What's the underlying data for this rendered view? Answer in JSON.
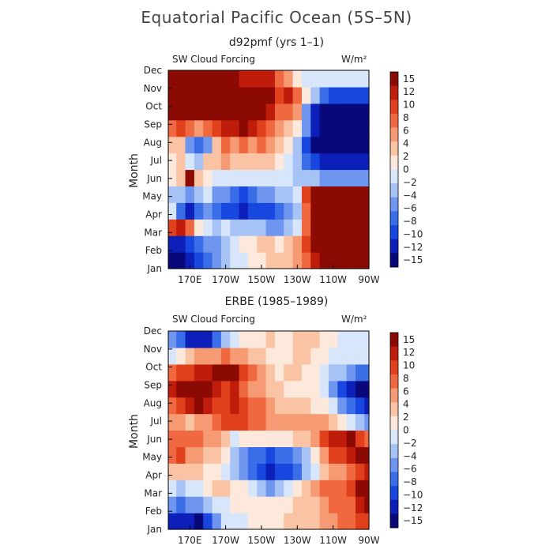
{
  "title": "Equatorial Pacific Ocean (5S–5N)",
  "colors": {
    "levels": [
      "#08087a",
      "#0c1fb8",
      "#1847e0",
      "#3a6ee8",
      "#6e96ef",
      "#a7c3f5",
      "#d8e6fb",
      "#fde9dc",
      "#f9c3a4",
      "#f59a72",
      "#f0683f",
      "#e0401c",
      "#c01c0b",
      "#8c0a04"
    ]
  },
  "chart_data": [
    {
      "type": "heatmap",
      "title": "d92pmf (yrs 1–1)",
      "variable": "SW Cloud Forcing",
      "units": "W/m²",
      "ylabel": "Month",
      "x_ticks": [
        "170E",
        "170W",
        "150W",
        "130W",
        "110W",
        "90W"
      ],
      "x_tick_values": [
        170,
        190,
        210,
        230,
        250,
        270
      ],
      "xlim": [
        158,
        270
      ],
      "y_ticks": [
        "Jan",
        "Feb",
        "Mar",
        "Apr",
        "May",
        "Jun",
        "Jul",
        "Aug",
        "Sep",
        "Oct",
        "Nov",
        "Dec"
      ],
      "colorbar_labels": [
        "15",
        "12",
        "10",
        "8",
        "6",
        "4",
        "2",
        "0",
        "−2",
        "−4",
        "−6",
        "−8",
        "−10",
        "−12",
        "−15"
      ],
      "x": [
        160,
        165,
        170,
        175,
        180,
        185,
        190,
        195,
        200,
        205,
        210,
        215,
        220,
        225,
        230,
        235,
        240,
        245,
        250,
        255,
        260,
        265,
        270
      ],
      "grid": [
        [
          -14,
          -14,
          -12,
          -10,
          -8,
          -6,
          -4,
          -2,
          -1,
          0,
          1,
          2,
          2,
          3,
          4,
          6,
          10,
          14,
          15,
          16,
          16,
          16,
          16
        ],
        [
          -13,
          -12,
          -10,
          -8,
          -6,
          -5,
          -3,
          -2,
          0,
          1,
          2,
          2,
          1,
          2,
          4,
          8,
          12,
          14,
          15,
          16,
          16,
          16,
          16
        ],
        [
          8,
          10,
          6,
          0,
          -2,
          -3,
          -2,
          -3,
          -4,
          -4,
          -4,
          -5,
          -5,
          -4,
          -2,
          6,
          12,
          15,
          16,
          16,
          16,
          16,
          16
        ],
        [
          -2,
          -8,
          -12,
          -8,
          -6,
          -8,
          -10,
          -10,
          -11,
          -9,
          -10,
          -9,
          -8,
          -6,
          -4,
          6,
          12,
          15,
          16,
          16,
          16,
          16,
          16
        ],
        [
          -4,
          -3,
          -6,
          -3,
          -2,
          -5,
          -6,
          -8,
          -9,
          -7,
          -6,
          -5,
          -4,
          -3,
          -1,
          8,
          12,
          12,
          12,
          12,
          12,
          12,
          12
        ],
        [
          0,
          2,
          16,
          3,
          1,
          -2,
          -1,
          -1,
          -2,
          -1,
          -1,
          -1,
          -2,
          -2,
          -3,
          -4,
          -4,
          -5,
          -5,
          -5,
          -5,
          -5,
          -5
        ],
        [
          1,
          3,
          -1,
          -4,
          2,
          2,
          4,
          3,
          2,
          2,
          3,
          2,
          0,
          -1,
          -4,
          -8,
          -10,
          -11,
          -12,
          -12,
          -12,
          -12,
          -12
        ],
        [
          2,
          2,
          -6,
          -8,
          -5,
          3,
          6,
          5,
          6,
          5,
          6,
          4,
          2,
          0,
          -4,
          -10,
          -14,
          -15,
          -16,
          -16,
          -16,
          -16,
          -16
        ],
        [
          6,
          8,
          6,
          4,
          6,
          8,
          10,
          11,
          12,
          10,
          8,
          6,
          4,
          2,
          0,
          -6,
          -12,
          -16,
          -16,
          -16,
          -16,
          -16,
          -16
        ],
        [
          12,
          13,
          14,
          14,
          13,
          14,
          15,
          15,
          16,
          14,
          12,
          10,
          6,
          6,
          4,
          -6,
          -12,
          -16,
          -16,
          -16,
          -16,
          -16,
          -16
        ],
        [
          15,
          16,
          16,
          16,
          16,
          16,
          16,
          16,
          16,
          16,
          14,
          12,
          8,
          10,
          6,
          0,
          -4,
          -8,
          -10,
          -10,
          -10,
          -10,
          -10
        ],
        [
          12,
          12,
          12,
          12,
          12,
          12,
          12,
          12,
          10,
          10,
          10,
          10,
          6,
          4,
          0,
          -2,
          -2,
          -2,
          -2,
          -2,
          -2,
          -2,
          -2
        ]
      ]
    },
    {
      "type": "heatmap",
      "title": "ERBE (1985–1989)",
      "variable": "SW Cloud Forcing",
      "units": "W/m²",
      "ylabel": "Month",
      "x_ticks": [
        "170E",
        "170W",
        "150W",
        "130W",
        "110W",
        "90W"
      ],
      "x_tick_values": [
        170,
        190,
        210,
        230,
        250,
        270
      ],
      "xlim": [
        158,
        270
      ],
      "y_ticks": [
        "Jan",
        "Feb",
        "Mar",
        "Apr",
        "May",
        "Jun",
        "Jul",
        "Aug",
        "Sep",
        "Oct",
        "Nov",
        "Dec"
      ],
      "colorbar_labels": [
        "15",
        "12",
        "10",
        "8",
        "6",
        "4",
        "2",
        "0",
        "−2",
        "−4",
        "−6",
        "−8",
        "−10",
        "−12",
        "−15"
      ],
      "x": [
        160,
        165,
        170,
        175,
        180,
        185,
        190,
        195,
        200,
        205,
        210,
        215,
        220,
        225,
        230,
        235,
        240,
        245,
        250,
        255,
        260,
        265,
        270
      ],
      "grid": [
        [
          -12,
          -13,
          -12,
          -14,
          -10,
          -6,
          -2,
          -1,
          -1,
          0,
          0,
          1,
          1,
          2,
          2,
          3,
          3,
          4,
          5,
          6,
          6,
          8,
          8
        ],
        [
          -6,
          -8,
          -6,
          -5,
          -4,
          -2,
          -1,
          0,
          0,
          1,
          1,
          1,
          1,
          1,
          2,
          2,
          3,
          4,
          6,
          6,
          6,
          10,
          12
        ],
        [
          -2,
          -3,
          -2,
          -1,
          0,
          2,
          2,
          1,
          0,
          -2,
          -4,
          -5,
          -4,
          -2,
          0,
          2,
          4,
          6,
          6,
          6,
          8,
          12,
          14
        ],
        [
          2,
          2,
          3,
          2,
          1,
          0,
          -2,
          -4,
          -6,
          -8,
          -10,
          -11,
          -10,
          -9,
          -7,
          -4,
          -1,
          2,
          4,
          5,
          6,
          8,
          10
        ],
        [
          6,
          8,
          4,
          4,
          3,
          2,
          0,
          -4,
          -6,
          -8,
          -8,
          -9,
          -8,
          -7,
          -6,
          -3,
          0,
          4,
          8,
          8,
          10,
          12,
          12
        ],
        [
          6,
          6,
          6,
          6,
          5,
          4,
          2,
          -2,
          0,
          0,
          0,
          1,
          1,
          1,
          2,
          2,
          4,
          8,
          10,
          10,
          12,
          8,
          6
        ],
        [
          4,
          4,
          3,
          4,
          4,
          6,
          8,
          8,
          8,
          7,
          6,
          5,
          5,
          4,
          4,
          4,
          4,
          4,
          2,
          0,
          -2,
          -4,
          -6
        ],
        [
          6,
          8,
          10,
          12,
          10,
          8,
          8,
          10,
          8,
          6,
          6,
          4,
          3,
          2,
          2,
          2,
          1,
          0,
          -2,
          -6,
          -8,
          -10,
          -12
        ],
        [
          10,
          14,
          12,
          14,
          12,
          10,
          8,
          10,
          6,
          4,
          4,
          2,
          2,
          1,
          0,
          0,
          0,
          -2,
          -6,
          -10,
          -12,
          -14,
          -14
        ],
        [
          6,
          8,
          8,
          10,
          10,
          12,
          14,
          12,
          8,
          6,
          4,
          2,
          1,
          2,
          2,
          1,
          0,
          -2,
          -4,
          -4,
          -6,
          -8,
          -8
        ],
        [
          -2,
          0,
          2,
          4,
          4,
          5,
          6,
          4,
          4,
          2,
          2,
          1,
          0,
          1,
          2,
          2,
          1,
          0,
          -1,
          -2,
          -2,
          -2,
          -2
        ],
        [
          -6,
          -8,
          -12,
          -13,
          -12,
          -8,
          -4,
          -2,
          0,
          1,
          1,
          2,
          1,
          1,
          2,
          2,
          2,
          1,
          0,
          -1,
          -1,
          -1,
          -1
        ]
      ]
    }
  ]
}
